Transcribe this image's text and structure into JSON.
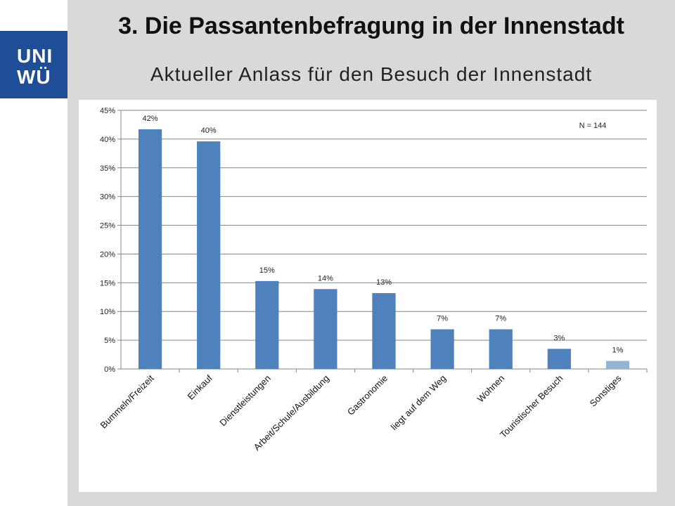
{
  "slide": {
    "title": "3. Die Passantenbefragung in der Innenstadt",
    "subtitle": "Aktueller Anlass für den Besuch der Innenstadt"
  },
  "logo": {
    "line1": "UNI",
    "line2": "WÜ"
  },
  "colors": {
    "bar": "#4f81bd",
    "bar_last": "#95b3d7",
    "logo_bg": "#1f4e99",
    "slide_bg": "#d9d9d9",
    "grid": "#868686"
  },
  "chart_data": {
    "type": "bar",
    "categories": [
      "Bummeln/Freizeit",
      "Einkauf",
      "Dienstleistungen",
      "Arbeit/Schule/Ausbildung",
      "Gastronomie",
      "liegt auf dem Weg",
      "Wohnen",
      "Touristischer Besuch",
      "Sonstiges"
    ],
    "values": [
      41.7,
      39.6,
      15.3,
      13.9,
      13.2,
      6.9,
      6.9,
      3.5,
      1.4
    ],
    "data_labels": [
      "42%",
      "40%",
      "15%",
      "14%",
      "13%",
      "7%",
      "7%",
      "3%",
      "1%"
    ],
    "y_ticks": [
      "0%",
      "5%",
      "10%",
      "15%",
      "20%",
      "25%",
      "30%",
      "35%",
      "40%",
      "45%"
    ],
    "ylim": [
      0,
      45
    ],
    "grid": true,
    "annotation": "N = 144"
  }
}
